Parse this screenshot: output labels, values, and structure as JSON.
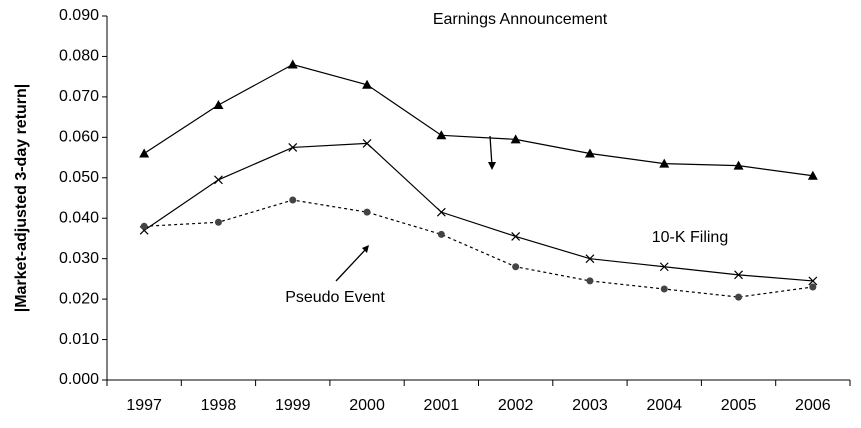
{
  "chart_data": {
    "type": "line",
    "ylabel": "|Market-adjusted 3-day return|",
    "categories": [
      "1997",
      "1998",
      "1999",
      "2000",
      "2001",
      "2002",
      "2003",
      "2004",
      "2005",
      "2006"
    ],
    "series": [
      {
        "name": "Earnings Announcement",
        "color": "#000000",
        "marker": "triangle",
        "dash": "solid",
        "values": [
          0.056,
          0.068,
          0.078,
          0.073,
          0.0605,
          0.0595,
          0.056,
          0.0535,
          0.053,
          0.0505
        ]
      },
      {
        "name": "10-K Filing",
        "color": "#000000",
        "marker": "x",
        "dash": "solid",
        "values": [
          0.037,
          0.0495,
          0.0575,
          0.0585,
          0.0415,
          0.0355,
          0.03,
          0.028,
          0.026,
          0.0245
        ]
      },
      {
        "name": "Pseudo Event",
        "color": "#000000",
        "marker": "circle",
        "marker_color": "#444444",
        "dash": "dotted",
        "values": [
          0.038,
          0.039,
          0.0445,
          0.0415,
          0.036,
          0.028,
          0.0245,
          0.0225,
          0.0205,
          0.023
        ]
      }
    ],
    "ylim": [
      0,
      0.09
    ],
    "yticks": [
      {
        "value": 0,
        "label": "0.000"
      },
      {
        "value": 0.01,
        "label": "0.010"
      },
      {
        "value": 0.02,
        "label": "0.020"
      },
      {
        "value": 0.03,
        "label": "0.030"
      },
      {
        "value": 0.04,
        "label": "0.040"
      },
      {
        "value": 0.05,
        "label": "0.050"
      },
      {
        "value": 0.06,
        "label": "0.060"
      },
      {
        "value": 0.07,
        "label": "0.070"
      },
      {
        "value": 0.08,
        "label": "0.080"
      },
      {
        "value": 0.09,
        "label": "0.090"
      }
    ],
    "grid": false
  }
}
